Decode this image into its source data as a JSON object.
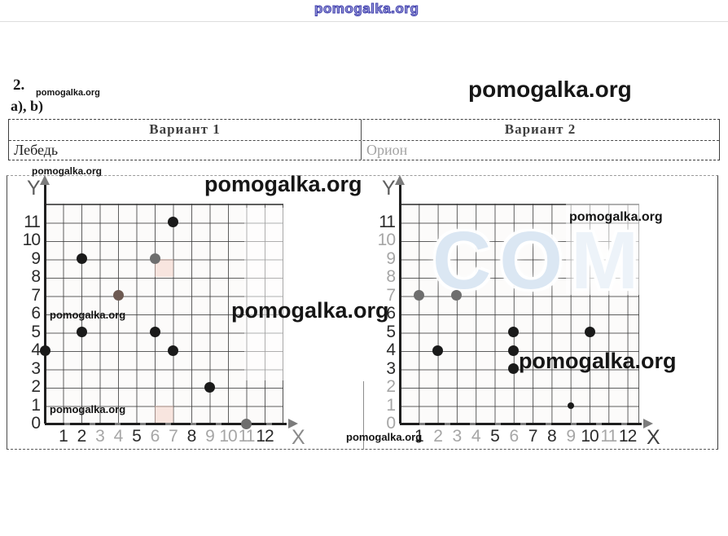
{
  "page": {
    "top_watermark": "pomogalka.org",
    "problem_number": "2.",
    "subparts_label": "a), b)"
  },
  "watermarks": {
    "site": "pomogalka.org",
    "blue_grid": "COM"
  },
  "table": {
    "headers": [
      "Вариант 1",
      "Вариант 2"
    ],
    "rows": [
      [
        "Лебедь",
        "Орион"
      ]
    ]
  },
  "colors": {
    "black": "#1a1a1a",
    "gray": "#6e6e6e",
    "taupe": "#6d5a52",
    "tick": "#2b2b2b",
    "muted_tick": "#a6a6a6",
    "watermark_blue": "#4040ae",
    "watermark_lightblue": "#dbe7f3"
  },
  "chart_data": [
    {
      "type": "scatter",
      "variant": "Вариант 1",
      "title": "Лебедь",
      "xlabel": "X",
      "ylabel": "Y",
      "x_ticks": [
        "1",
        "2",
        "3",
        "4",
        "5",
        "6",
        "7",
        "8",
        "9",
        "10",
        "11",
        "12"
      ],
      "y_ticks": [
        "0",
        "1",
        "2",
        "3",
        "4",
        "5",
        "6",
        "7",
        "8",
        "9",
        "10",
        "11"
      ],
      "xlim": [
        0,
        13
      ],
      "ylim": [
        0,
        12
      ],
      "grid": true,
      "points": [
        {
          "x": 7,
          "y": 11,
          "shade": "black"
        },
        {
          "x": 2,
          "y": 9,
          "shade": "black"
        },
        {
          "x": 6,
          "y": 9,
          "shade": "gray"
        },
        {
          "x": 4,
          "y": 7,
          "shade": "taupe"
        },
        {
          "x": 2,
          "y": 5,
          "shade": "black"
        },
        {
          "x": 6,
          "y": 5,
          "shade": "black"
        },
        {
          "x": 0,
          "y": 4,
          "shade": "black"
        },
        {
          "x": 7,
          "y": 4,
          "shade": "black"
        },
        {
          "x": 9,
          "y": 2,
          "shade": "black"
        },
        {
          "x": 11,
          "y": 0,
          "shade": "gray"
        }
      ]
    },
    {
      "type": "scatter",
      "variant": "Вариант 2",
      "title": "Орион",
      "xlabel": "X",
      "ylabel": "Y",
      "x_ticks": [
        "1",
        "2",
        "3",
        "4",
        "5",
        "6",
        "7",
        "8",
        "9",
        "10",
        "11",
        "12"
      ],
      "y_ticks": [
        "0",
        "1",
        "2",
        "3",
        "4",
        "5",
        "6",
        "7",
        "8",
        "9",
        "10",
        "11"
      ],
      "xlim": [
        0,
        13
      ],
      "ylim": [
        0,
        12
      ],
      "grid": true,
      "points": [
        {
          "x": 1,
          "y": 7,
          "shade": "gray"
        },
        {
          "x": 3,
          "y": 7,
          "shade": "gray"
        },
        {
          "x": 2,
          "y": 4,
          "shade": "black"
        },
        {
          "x": 6,
          "y": 5,
          "shade": "black"
        },
        {
          "x": 6,
          "y": 4,
          "shade": "black"
        },
        {
          "x": 6,
          "y": 3,
          "shade": "black"
        },
        {
          "x": 10,
          "y": 5,
          "shade": "black"
        },
        {
          "x": 9,
          "y": 1,
          "shade": "black",
          "small": true
        }
      ]
    }
  ]
}
